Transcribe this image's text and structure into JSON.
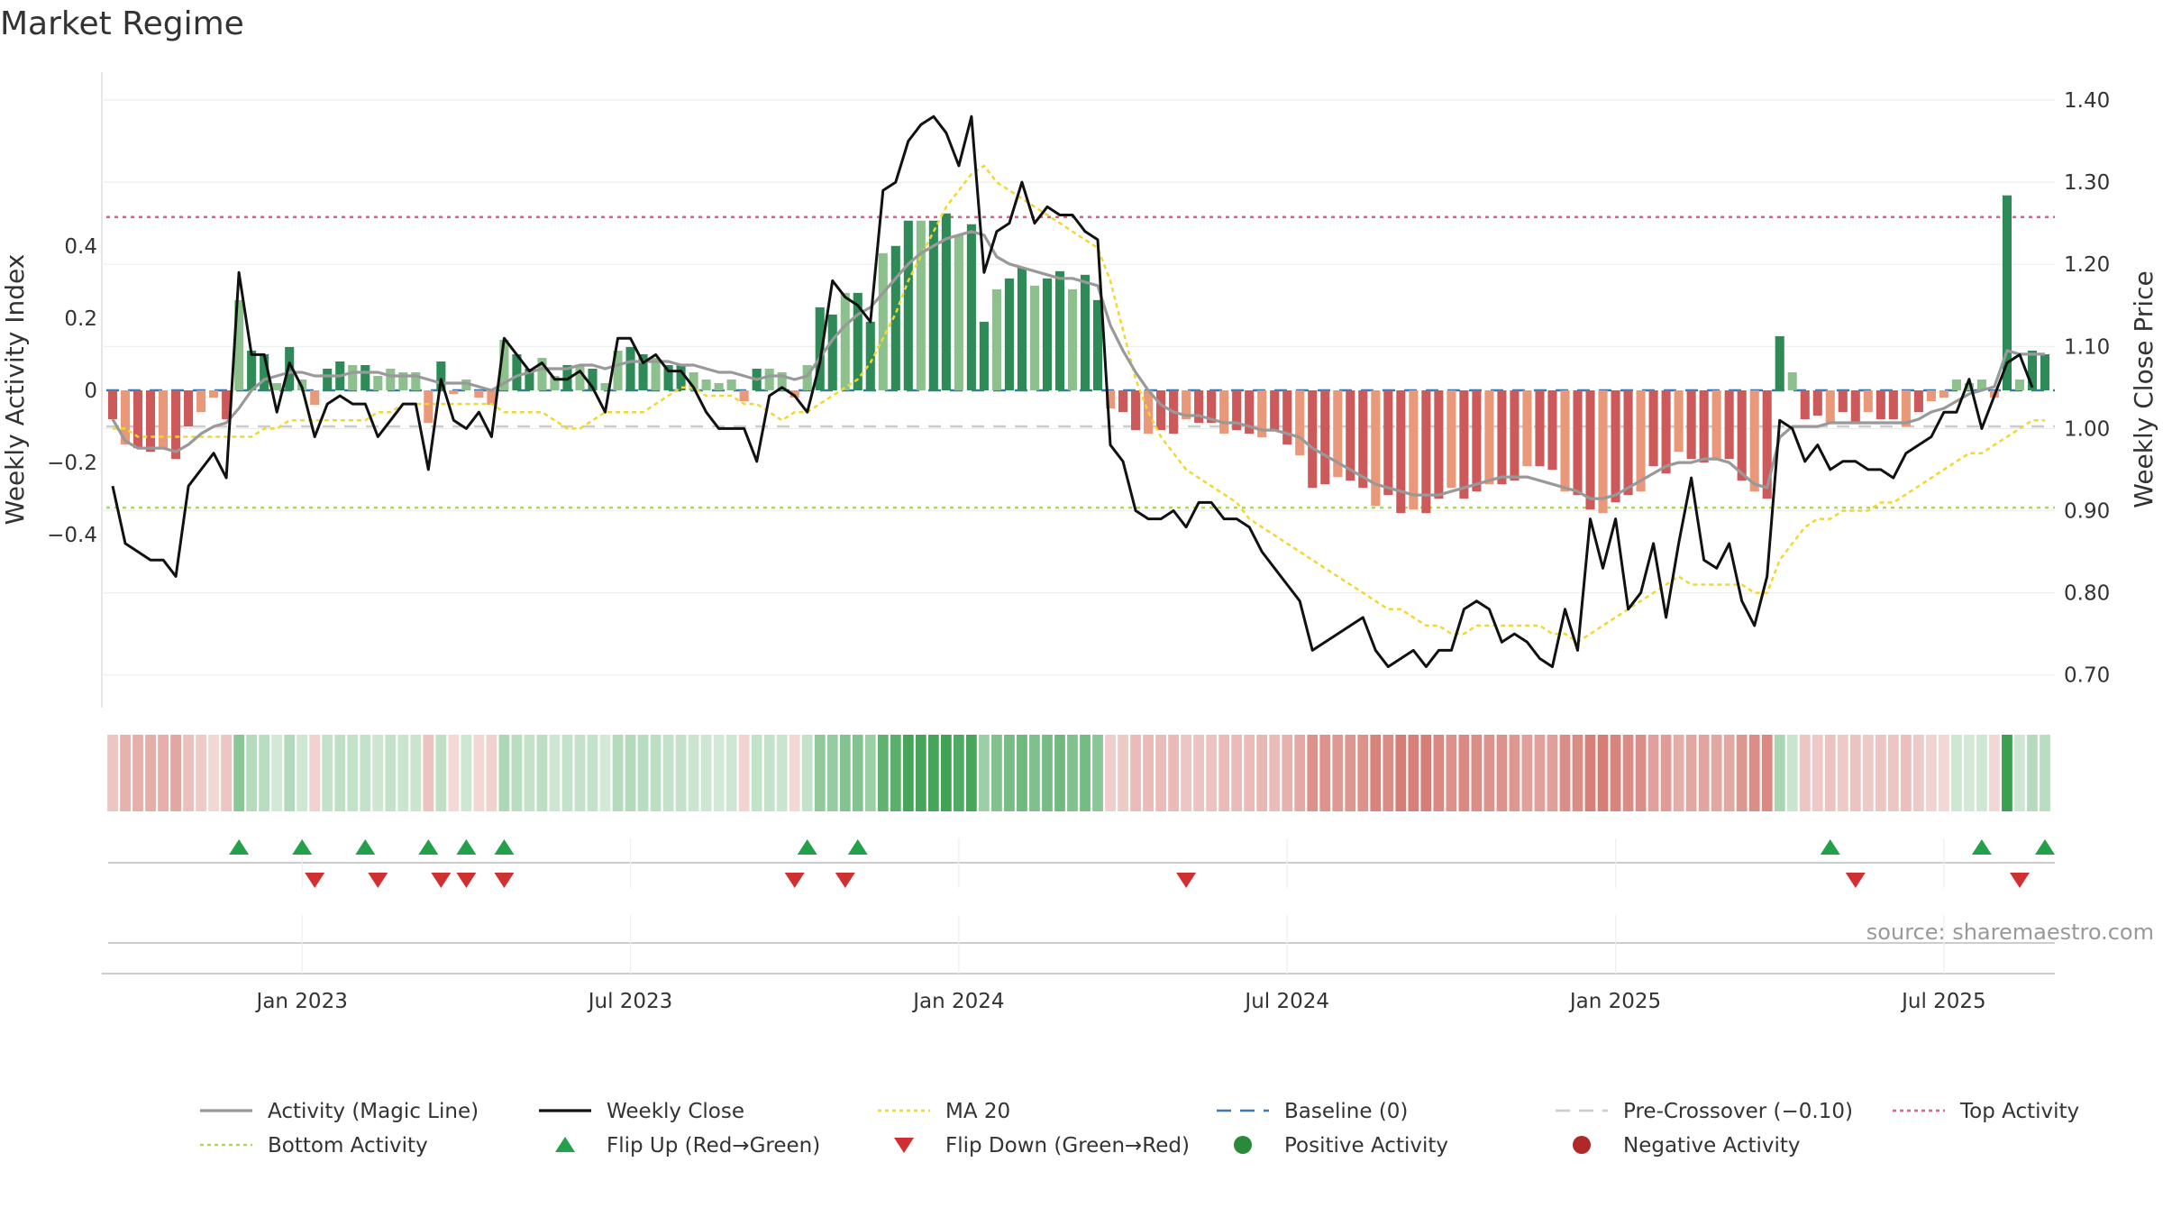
{
  "chart_data": {
    "type": "bar",
    "title": "Market Regime",
    "ylabel_left": "Weekly Activity Index",
    "ylabel_right": "Weekly Close Price",
    "source": "source: sharemaestro.com",
    "left_ticks": [
      "0.4",
      "0.2",
      "0",
      "−0.2",
      "−0.4"
    ],
    "left_tick_values": [
      0.4,
      0.2,
      0,
      -0.2,
      -0.4
    ],
    "ylim_left": [
      -0.58,
      0.58
    ],
    "right_ticks": [
      "1.40",
      "1.30",
      "1.20",
      "1.10",
      "1.00",
      "0.90",
      "0.80",
      "0.70"
    ],
    "right_tick_values": [
      1.4,
      1.3,
      1.2,
      1.1,
      1.0,
      0.9,
      0.8,
      0.7
    ],
    "ylim_right": [
      0.66,
      1.415
    ],
    "x_ticks": [
      "Jan 2023",
      "Jul 2023",
      "Jan 2024",
      "Jul 2024",
      "Jan 2025",
      "Jul 2025"
    ],
    "x_tick_weeks": [
      15,
      41,
      67,
      93,
      119,
      145
    ],
    "top_activity": 0.48,
    "bottom_activity": -0.325,
    "baseline": 0,
    "pre_crossover": -0.1,
    "activity": [
      -0.08,
      -0.15,
      -0.16,
      -0.17,
      -0.16,
      -0.19,
      -0.1,
      -0.06,
      -0.02,
      -0.08,
      0.25,
      0.11,
      0.1,
      0.02,
      0.12,
      0.03,
      -0.04,
      0.06,
      0.08,
      0.07,
      0.07,
      0.04,
      0.06,
      0.05,
      0.05,
      -0.09,
      0.08,
      -0.01,
      0.03,
      -0.02,
      -0.04,
      0.14,
      0.1,
      0.06,
      0.09,
      0.04,
      0.07,
      0.07,
      0.06,
      0.02,
      0.11,
      0.12,
      0.1,
      0.09,
      0.07,
      0.07,
      0.05,
      0.03,
      0.02,
      0.03,
      -0.03,
      0.06,
      0.06,
      0.05,
      -0.02,
      0.07,
      0.23,
      0.21,
      0.27,
      0.27,
      0.19,
      0.38,
      0.4,
      0.47,
      0.47,
      0.47,
      0.49,
      0.43,
      0.46,
      0.19,
      0.28,
      0.31,
      0.34,
      0.29,
      0.31,
      0.33,
      0.28,
      0.32,
      0.25,
      -0.05,
      -0.06,
      -0.11,
      -0.12,
      -0.11,
      -0.12,
      -0.08,
      -0.09,
      -0.09,
      -0.12,
      -0.11,
      -0.12,
      -0.13,
      -0.11,
      -0.15,
      -0.18,
      -0.27,
      -0.26,
      -0.24,
      -0.25,
      -0.27,
      -0.32,
      -0.29,
      -0.34,
      -0.33,
      -0.34,
      -0.3,
      -0.27,
      -0.3,
      -0.28,
      -0.26,
      -0.26,
      -0.25,
      -0.21,
      -0.21,
      -0.22,
      -0.28,
      -0.29,
      -0.33,
      -0.34,
      -0.31,
      -0.29,
      -0.28,
      -0.21,
      -0.23,
      -0.17,
      -0.19,
      -0.2,
      -0.19,
      -0.19,
      -0.25,
      -0.28,
      -0.3,
      0.15,
      0.05,
      -0.08,
      -0.07,
      -0.09,
      -0.06,
      -0.09,
      -0.06,
      -0.08,
      -0.08,
      -0.1,
      -0.06,
      -0.03,
      -0.02,
      0.03,
      0.02,
      0.03,
      -0.02,
      0.54,
      0.03,
      0.11,
      0.1
    ],
    "magic_line": [
      -0.08,
      -0.14,
      -0.16,
      -0.16,
      -0.16,
      -0.17,
      -0.15,
      -0.12,
      -0.1,
      -0.09,
      -0.05,
      0.0,
      0.03,
      0.04,
      0.05,
      0.05,
      0.04,
      0.04,
      0.04,
      0.05,
      0.05,
      0.05,
      0.04,
      0.04,
      0.04,
      0.03,
      0.02,
      0.02,
      0.02,
      0.01,
      0.0,
      0.02,
      0.04,
      0.05,
      0.06,
      0.06,
      0.06,
      0.07,
      0.07,
      0.06,
      0.07,
      0.08,
      0.08,
      0.08,
      0.08,
      0.07,
      0.07,
      0.06,
      0.05,
      0.05,
      0.04,
      0.03,
      0.04,
      0.04,
      0.03,
      0.04,
      0.09,
      0.14,
      0.18,
      0.21,
      0.23,
      0.27,
      0.31,
      0.35,
      0.38,
      0.4,
      0.42,
      0.43,
      0.44,
      0.43,
      0.37,
      0.35,
      0.34,
      0.33,
      0.32,
      0.31,
      0.31,
      0.3,
      0.29,
      0.18,
      0.11,
      0.05,
      0.0,
      -0.04,
      -0.06,
      -0.07,
      -0.07,
      -0.08,
      -0.09,
      -0.09,
      -0.1,
      -0.11,
      -0.11,
      -0.12,
      -0.13,
      -0.16,
      -0.18,
      -0.2,
      -0.22,
      -0.24,
      -0.26,
      -0.27,
      -0.28,
      -0.29,
      -0.29,
      -0.29,
      -0.28,
      -0.27,
      -0.26,
      -0.25,
      -0.24,
      -0.24,
      -0.24,
      -0.25,
      -0.26,
      -0.27,
      -0.28,
      -0.3,
      -0.3,
      -0.29,
      -0.27,
      -0.25,
      -0.23,
      -0.21,
      -0.2,
      -0.2,
      -0.19,
      -0.19,
      -0.2,
      -0.23,
      -0.26,
      -0.27,
      -0.13,
      -0.1,
      -0.1,
      -0.1,
      -0.09,
      -0.09,
      -0.09,
      -0.09,
      -0.09,
      -0.09,
      -0.09,
      -0.08,
      -0.06,
      -0.05,
      -0.03,
      -0.01,
      0.0,
      0.01,
      0.11,
      0.1,
      0.1,
      0.1
    ],
    "weekly_close": [
      0.93,
      0.86,
      0.85,
      0.84,
      0.84,
      0.82,
      0.93,
      0.95,
      0.97,
      0.94,
      1.19,
      1.09,
      1.09,
      1.02,
      1.08,
      1.05,
      0.99,
      1.03,
      1.04,
      1.03,
      1.03,
      0.99,
      1.01,
      1.03,
      1.03,
      0.95,
      1.06,
      1.01,
      1.0,
      1.02,
      0.99,
      1.11,
      1.09,
      1.07,
      1.08,
      1.06,
      1.06,
      1.07,
      1.05,
      1.02,
      1.11,
      1.11,
      1.08,
      1.09,
      1.07,
      1.07,
      1.05,
      1.02,
      1.0,
      1.0,
      1.0,
      0.96,
      1.04,
      1.05,
      1.04,
      1.02,
      1.08,
      1.18,
      1.16,
      1.15,
      1.13,
      1.29,
      1.3,
      1.35,
      1.37,
      1.38,
      1.36,
      1.32,
      1.38,
      1.19,
      1.24,
      1.25,
      1.3,
      1.25,
      1.27,
      1.26,
      1.26,
      1.24,
      1.23,
      0.98,
      0.96,
      0.9,
      0.89,
      0.89,
      0.9,
      0.88,
      0.91,
      0.91,
      0.89,
      0.89,
      0.88,
      0.85,
      0.83,
      0.81,
      0.79,
      0.73,
      0.74,
      0.75,
      0.76,
      0.77,
      0.73,
      0.71,
      0.72,
      0.73,
      0.71,
      0.73,
      0.73,
      0.78,
      0.79,
      0.78,
      0.74,
      0.75,
      0.74,
      0.72,
      0.71,
      0.78,
      0.73,
      0.89,
      0.83,
      0.89,
      0.78,
      0.8,
      0.86,
      0.77,
      0.86,
      0.94,
      0.84,
      0.83,
      0.86,
      0.79,
      0.76,
      0.82,
      1.01,
      1.0,
      0.96,
      0.98,
      0.95,
      0.96,
      0.96,
      0.95,
      0.95,
      0.94,
      0.97,
      0.98,
      0.99,
      1.02,
      1.02,
      1.06,
      1.0,
      1.04,
      1.08,
      1.09,
      1.05
    ],
    "ma20": [
      1.0,
      1.0,
      0.99,
      0.99,
      0.99,
      0.99,
      0.99,
      0.99,
      0.99,
      0.99,
      0.99,
      0.99,
      1.0,
      1.0,
      1.01,
      1.01,
      1.01,
      1.01,
      1.01,
      1.01,
      1.01,
      1.02,
      1.02,
      1.03,
      1.03,
      1.03,
      1.03,
      1.03,
      1.03,
      1.03,
      1.03,
      1.02,
      1.02,
      1.02,
      1.02,
      1.01,
      1.0,
      1.0,
      1.01,
      1.02,
      1.02,
      1.02,
      1.02,
      1.03,
      1.04,
      1.05,
      1.05,
      1.04,
      1.04,
      1.04,
      1.03,
      1.03,
      1.02,
      1.01,
      1.02,
      1.02,
      1.03,
      1.04,
      1.05,
      1.06,
      1.08,
      1.11,
      1.14,
      1.18,
      1.21,
      1.24,
      1.27,
      1.29,
      1.31,
      1.32,
      1.3,
      1.29,
      1.28,
      1.27,
      1.26,
      1.25,
      1.24,
      1.23,
      1.22,
      1.18,
      1.12,
      1.06,
      1.02,
      0.99,
      0.97,
      0.95,
      0.94,
      0.93,
      0.92,
      0.91,
      0.89,
      0.88,
      0.87,
      0.86,
      0.85,
      0.84,
      0.83,
      0.82,
      0.81,
      0.8,
      0.79,
      0.78,
      0.78,
      0.77,
      0.76,
      0.76,
      0.75,
      0.75,
      0.76,
      0.76,
      0.76,
      0.76,
      0.76,
      0.76,
      0.75,
      0.75,
      0.74,
      0.75,
      0.76,
      0.77,
      0.78,
      0.79,
      0.8,
      0.81,
      0.82,
      0.81,
      0.81,
      0.81,
      0.81,
      0.81,
      0.8,
      0.8,
      0.84,
      0.86,
      0.88,
      0.89,
      0.89,
      0.9,
      0.9,
      0.9,
      0.91,
      0.91,
      0.92,
      0.93,
      0.94,
      0.95,
      0.96,
      0.97,
      0.97,
      0.98,
      0.99,
      1.0,
      1.01,
      1.01
    ],
    "flip_up_weeks": [
      10,
      15,
      20,
      25,
      28,
      31,
      55,
      59,
      136,
      148,
      153
    ],
    "flip_down_weeks": [
      16,
      21,
      26,
      28,
      31,
      54,
      58,
      85,
      138,
      151
    ],
    "legend": [
      {
        "label": "Activity (Magic Line)",
        "kind": "line",
        "color": "#999999"
      },
      {
        "label": "Weekly Close",
        "kind": "line",
        "color": "#111111"
      },
      {
        "label": "MA 20",
        "kind": "dotted",
        "color": "#f0d830"
      },
      {
        "label": "Baseline (0)",
        "kind": "dashed",
        "color": "#3c78b0"
      },
      {
        "label": "Pre-Crossover (−0.10)",
        "kind": "dashed",
        "color": "#cccccc"
      },
      {
        "label": "Top Activity",
        "kind": "dotted",
        "color": "#e06080"
      },
      {
        "label": "Bottom Activity",
        "kind": "dotted",
        "color": "#a8d860"
      },
      {
        "label": "Flip Up (Red→Green)",
        "kind": "tri-up",
        "color": "#22a04a"
      },
      {
        "label": "Flip Down (Green→Red)",
        "kind": "tri-down",
        "color": "#d03030"
      },
      {
        "label": "Positive Activity",
        "kind": "dot",
        "color": "#2a8a3a"
      },
      {
        "label": "Negative Activity",
        "kind": "dot",
        "color": "#b02828"
      }
    ],
    "colors": {
      "positive_strong": "#2e8b57",
      "positive_light": "#8cc08c",
      "negative_strong": "#cd5a5a",
      "negative_light": "#e9987a",
      "close": "#111111",
      "magic": "#999999",
      "ma20": "#f0d830",
      "top": "#e06080",
      "bottom": "#a8d860",
      "baseline": "#3c78b0",
      "precross": "#cccccc"
    }
  }
}
